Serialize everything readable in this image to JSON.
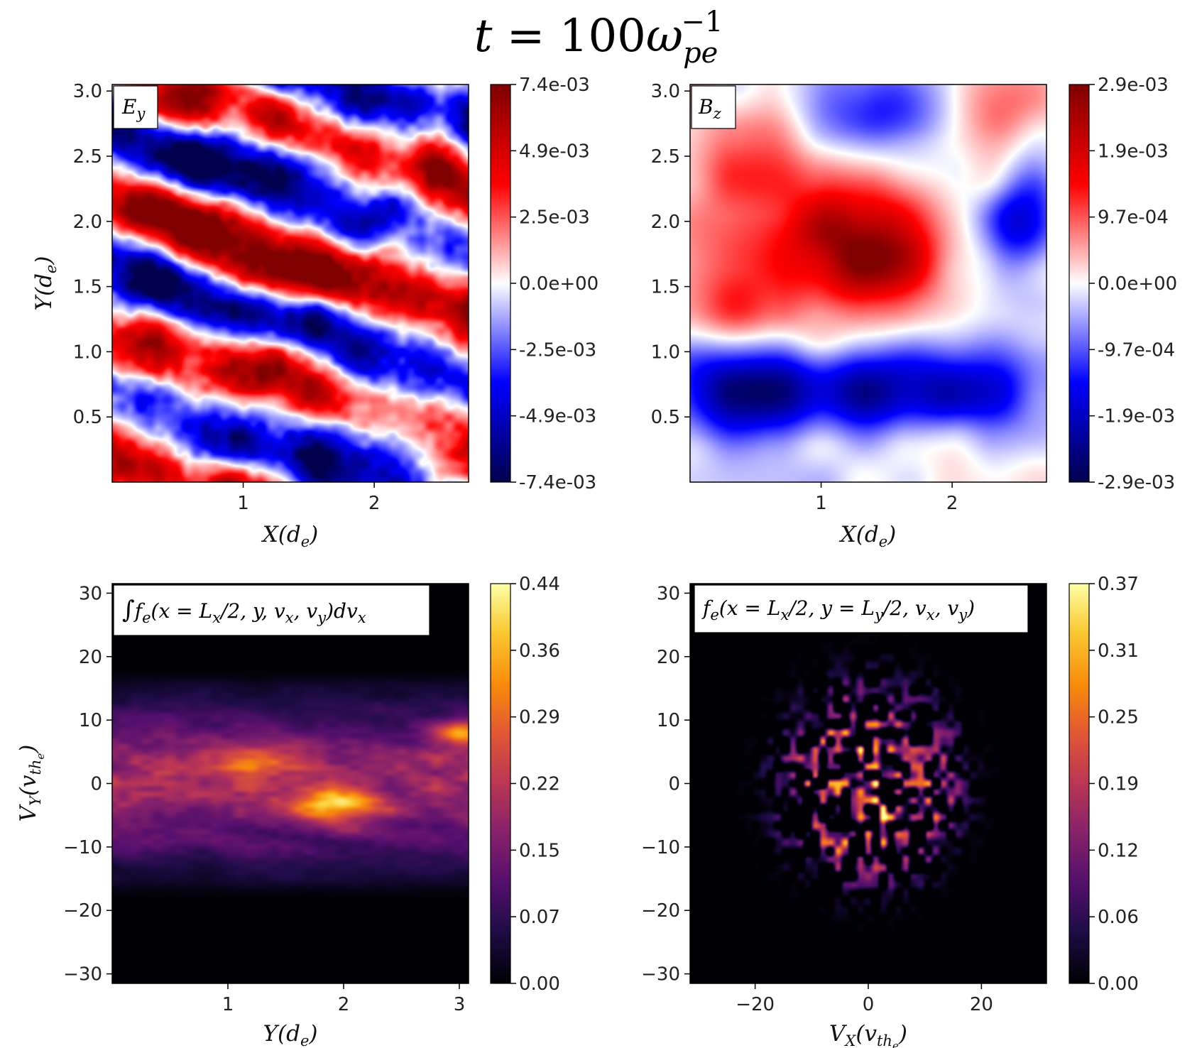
{
  "figure": {
    "title": "t = 100ω_pe^{-1}",
    "title_parts": {
      "lhs": "t",
      "eq": " = 100",
      "omega": "ω",
      "sub": "pe",
      "sup": "−1"
    }
  },
  "chart_data": [
    {
      "id": "ey",
      "type": "heatmap",
      "panel_label": "E_y",
      "label_parts": {
        "main": "E",
        "sub": "y"
      },
      "xlabel": "X(d_e)",
      "xlabel_parts": {
        "pre": "X(",
        "main": "d",
        "sub": "e",
        "post": ")"
      },
      "ylabel": "Y(d_e)",
      "ylabel_parts": {
        "pre": "Y(",
        "main": "d",
        "sub": "e",
        "post": ")"
      },
      "xlim": [
        0,
        2.72
      ],
      "ylim": [
        0,
        3.05
      ],
      "x_ticks": [
        {
          "v": 1,
          "label": "1"
        },
        {
          "v": 2,
          "label": "2"
        }
      ],
      "y_ticks": [
        {
          "v": 0.5,
          "label": "0.5"
        },
        {
          "v": 1.0,
          "label": "1.0"
        },
        {
          "v": 1.5,
          "label": "1.5"
        },
        {
          "v": 2.0,
          "label": "2.0"
        },
        {
          "v": 2.5,
          "label": "2.5"
        },
        {
          "v": 3.0,
          "label": "3.0"
        }
      ],
      "colormap": "seismic",
      "colorbar_range": [
        -0.0074,
        0.0074
      ],
      "colorbar_ticks": [
        "7.4e-03",
        "4.9e-03",
        "2.5e-03",
        "0.0e+00",
        "-2.5e-03",
        "-4.9e-03",
        "-7.4e-03"
      ],
      "field_description": "diagonal alternating bands of positive and negative Ey",
      "field": {
        "kind": "bands",
        "peak": 0.0074,
        "blobs": [
          {
            "x": 0.6,
            "y": 2.5,
            "a": -0.9,
            "sx": 0.5,
            "sy": 0.2
          },
          {
            "x": 1.5,
            "y": 2.35,
            "a": -0.7,
            "sx": 0.45,
            "sy": 0.25
          },
          {
            "x": 0.4,
            "y": 1.4,
            "a": -0.9,
            "sx": 0.45,
            "sy": 0.22
          },
          {
            "x": 2.0,
            "y": 0.55,
            "a": -1.0,
            "sx": 0.5,
            "sy": 0.2
          },
          {
            "x": 0.6,
            "y": 2.0,
            "a": 0.85,
            "sx": 0.55,
            "sy": 0.2
          },
          {
            "x": 1.4,
            "y": 1.6,
            "a": 0.85,
            "sx": 0.5,
            "sy": 0.2
          },
          {
            "x": 0.6,
            "y": 0.45,
            "a": 0.85,
            "sx": 0.5,
            "sy": 0.2
          },
          {
            "x": 2.3,
            "y": 2.1,
            "a": 0.6,
            "sx": 0.3,
            "sy": 0.3
          },
          {
            "x": 1.3,
            "y": 0.9,
            "a": 0.7,
            "sx": 0.35,
            "sy": 0.2
          }
        ]
      }
    },
    {
      "id": "bz",
      "type": "heatmap",
      "panel_label": "B_z",
      "label_parts": {
        "main": "B",
        "sub": "z"
      },
      "xlabel": "X(d_e)",
      "xlabel_parts": {
        "pre": "X(",
        "main": "d",
        "sub": "e",
        "post": ")"
      },
      "xlim": [
        0,
        2.72
      ],
      "ylim": [
        0,
        3.05
      ],
      "x_ticks": [
        {
          "v": 1,
          "label": "1"
        },
        {
          "v": 2,
          "label": "2"
        }
      ],
      "y_ticks": [
        {
          "v": 0.5,
          "label": "0.5"
        },
        {
          "v": 1.0,
          "label": "1.0"
        },
        {
          "v": 1.5,
          "label": "1.5"
        },
        {
          "v": 2.0,
          "label": "2.0"
        },
        {
          "v": 2.5,
          "label": "2.5"
        },
        {
          "v": 3.0,
          "label": "3.0"
        }
      ],
      "colormap": "seismic",
      "colorbar_range": [
        -0.0029,
        0.0029
      ],
      "colorbar_ticks": [
        "2.9e-03",
        "1.9e-03",
        "9.7e-04",
        "0.0e+00",
        "-9.7e-04",
        "-1.9e-03",
        "-2.9e-03"
      ],
      "field_description": "strong positive Bz blob near center, negative band along the bottom",
      "field": {
        "kind": "blobs",
        "peak": 0.0029,
        "blobs": [
          {
            "x": 1.35,
            "y": 1.8,
            "a": 0.95,
            "sx": 0.4,
            "sy": 0.35
          },
          {
            "x": 0.4,
            "y": 1.6,
            "a": 0.35,
            "sx": 0.5,
            "sy": 0.5
          },
          {
            "x": 2.3,
            "y": 2.9,
            "a": 0.35,
            "sx": 0.35,
            "sy": 0.25
          },
          {
            "x": 0.4,
            "y": 2.6,
            "a": 0.25,
            "sx": 0.4,
            "sy": 0.3
          },
          {
            "x": 1.5,
            "y": 0.7,
            "a": -0.75,
            "sx": 0.9,
            "sy": 0.22
          },
          {
            "x": 0.3,
            "y": 0.7,
            "a": -0.6,
            "sx": 0.4,
            "sy": 0.22
          },
          {
            "x": 2.55,
            "y": 2.0,
            "a": -0.6,
            "sx": 0.2,
            "sy": 0.3
          },
          {
            "x": 1.5,
            "y": 2.9,
            "a": -0.55,
            "sx": 0.45,
            "sy": 0.25
          }
        ]
      }
    },
    {
      "id": "fy",
      "type": "heatmap",
      "panel_label": "∫f_e(x = L_x/2, y, v_x, v_y)dv_x",
      "label_parts": {
        "int": "∫",
        "f": "f",
        "fsub": "e",
        "open": "(x = ",
        "L": "L",
        "Lsub": "x",
        "mid": "/2, y, ",
        "v1": "v",
        "v1sub": "x",
        "comma": ", ",
        "v2": "v",
        "v2sub": "y",
        "close": ")d",
        "v3": "v",
        "v3sub": "x"
      },
      "xlabel": "Y(d_e)",
      "xlabel_parts": {
        "pre": "Y(",
        "main": "d",
        "sub": "e",
        "post": ")"
      },
      "ylabel": "V_Y(v_the)",
      "ylabel_parts": {
        "pre": "V",
        "sub1": "Y",
        "open": "(v",
        "sub2": "th",
        "sub3": "e",
        "post": ")"
      },
      "xlim": [
        0,
        3.08
      ],
      "ylim": [
        -31.5,
        31.5
      ],
      "x_ticks": [
        {
          "v": 1,
          "label": "1"
        },
        {
          "v": 2,
          "label": "2"
        },
        {
          "v": 3,
          "label": "3"
        }
      ],
      "y_ticks": [
        {
          "v": -30,
          "label": "−30"
        },
        {
          "v": -20,
          "label": "−20"
        },
        {
          "v": -10,
          "label": "−10"
        },
        {
          "v": 0,
          "label": "0"
        },
        {
          "v": 10,
          "label": "10"
        },
        {
          "v": 20,
          "label": "20"
        },
        {
          "v": 30,
          "label": "30"
        }
      ],
      "colormap": "inferno",
      "colorbar_range": [
        0.0,
        0.44
      ],
      "colorbar_ticks": [
        "0.44",
        "0.36",
        "0.29",
        "0.22",
        "0.15",
        "0.07",
        "0.00"
      ],
      "field_description": "horizontal band of the distribution spanning roughly -15 to 15 in V_Y with streaks",
      "field": {
        "kind": "band",
        "peak": 0.44,
        "blobs": [
          {
            "x": 1.9,
            "y": -3.5,
            "a": 1.0,
            "sx": 0.25,
            "sy": 2.0
          },
          {
            "x": 1.2,
            "y": 3.5,
            "a": 0.8,
            "sx": 0.2,
            "sy": 1.5
          },
          {
            "x": 3.0,
            "y": 8.0,
            "a": 0.9,
            "sx": 0.15,
            "sy": 1.5
          }
        ]
      }
    },
    {
      "id": "fv",
      "type": "heatmap",
      "panel_label": "f_e(x = L_x/2, y = L_y/2, v_x, v_y)",
      "label_parts": {
        "f": "f",
        "fsub": "e",
        "open": "(x = ",
        "L1": "L",
        "L1sub": "x",
        "mid1": "/2, y = ",
        "L2": "L",
        "L2sub": "y",
        "mid2": "/2, ",
        "v1": "v",
        "v1sub": "x",
        "comma": ", ",
        "v2": "v",
        "v2sub": "y",
        "close": ")"
      },
      "xlabel": "V_X(v_the)",
      "xlabel_parts": {
        "pre": "V",
        "sub1": "X",
        "open": "(v",
        "sub2": "th",
        "sub3": "e",
        "post": ")"
      },
      "xlim": [
        -31.5,
        31.5
      ],
      "ylim": [
        -31.5,
        31.5
      ],
      "x_ticks": [
        {
          "v": -20,
          "label": "−20"
        },
        {
          "v": 0,
          "label": "0"
        },
        {
          "v": 20,
          "label": "20"
        }
      ],
      "y_ticks": [
        {
          "v": -30,
          "label": "−30"
        },
        {
          "v": -20,
          "label": "−20"
        },
        {
          "v": -10,
          "label": "−10"
        },
        {
          "v": 0,
          "label": "0"
        },
        {
          "v": 10,
          "label": "10"
        },
        {
          "v": 20,
          "label": "20"
        },
        {
          "v": 30,
          "label": "30"
        }
      ],
      "colormap": "inferno",
      "colorbar_range": [
        0.0,
        0.37
      ],
      "colorbar_ticks": [
        "0.37",
        "0.31",
        "0.25",
        "0.19",
        "0.12",
        "0.06",
        "0.00"
      ],
      "field_description": "speckled roughly circular cloud of radius about 16 centered near origin",
      "field": {
        "kind": "speckle",
        "peak": 0.37,
        "center": [
          0,
          0
        ],
        "radius": 16
      }
    }
  ]
}
